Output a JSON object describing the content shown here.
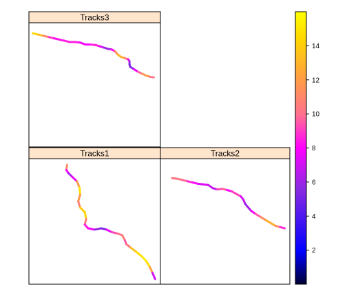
{
  "chart_data": {
    "type": "line",
    "description_of_encoding": "",
    "panels": [
      {
        "name": "Tracks3",
        "xlim": [
          0,
          1
        ],
        "ylim": [
          0,
          1
        ],
        "points": [
          [
            0.03,
            0.915,
            14.5
          ],
          [
            0.07,
            0.905,
            14.2
          ],
          [
            0.11,
            0.895,
            12.5
          ],
          [
            0.15,
            0.885,
            9.5
          ],
          [
            0.19,
            0.875,
            8.5
          ],
          [
            0.23,
            0.865,
            8.0
          ],
          [
            0.27,
            0.855,
            8.8
          ],
          [
            0.31,
            0.845,
            8.2
          ],
          [
            0.35,
            0.845,
            9.0
          ],
          [
            0.39,
            0.84,
            8.0
          ],
          [
            0.43,
            0.825,
            7.5
          ],
          [
            0.47,
            0.825,
            8.2
          ],
          [
            0.51,
            0.82,
            9.0
          ],
          [
            0.54,
            0.81,
            8.0
          ],
          [
            0.57,
            0.8,
            6.5
          ],
          [
            0.6,
            0.79,
            5.2
          ],
          [
            0.63,
            0.785,
            7.0
          ],
          [
            0.655,
            0.77,
            9.5
          ],
          [
            0.675,
            0.745,
            12.5
          ],
          [
            0.7,
            0.725,
            13.5
          ],
          [
            0.73,
            0.715,
            12.0
          ],
          [
            0.755,
            0.705,
            9.0
          ],
          [
            0.765,
            0.69,
            6.5
          ],
          [
            0.765,
            0.665,
            5.5
          ],
          [
            0.77,
            0.645,
            4.5
          ],
          [
            0.8,
            0.625,
            6.5
          ],
          [
            0.83,
            0.605,
            9.0
          ],
          [
            0.86,
            0.59,
            10.5
          ],
          [
            0.89,
            0.575,
            12.5
          ],
          [
            0.92,
            0.565,
            11.5
          ],
          [
            0.95,
            0.56,
            9.0
          ]
        ]
      },
      {
        "name": "Tracks1",
        "xlim": [
          0,
          1
        ],
        "ylim": [
          0,
          1
        ],
        "points": [
          [
            0.29,
            0.95,
            14.0
          ],
          [
            0.285,
            0.91,
            8.5
          ],
          [
            0.3,
            0.885,
            7.0
          ],
          [
            0.33,
            0.855,
            6.0
          ],
          [
            0.365,
            0.82,
            9.0
          ],
          [
            0.385,
            0.77,
            14.5
          ],
          [
            0.39,
            0.715,
            15.2
          ],
          [
            0.375,
            0.66,
            8.5
          ],
          [
            0.39,
            0.61,
            13.0
          ],
          [
            0.425,
            0.575,
            15.0
          ],
          [
            0.435,
            0.52,
            13.5
          ],
          [
            0.425,
            0.475,
            8.0
          ],
          [
            0.45,
            0.445,
            9.0
          ],
          [
            0.5,
            0.435,
            7.0
          ],
          [
            0.55,
            0.445,
            4.5
          ],
          [
            0.59,
            0.435,
            6.0
          ],
          [
            0.63,
            0.415,
            9.0
          ],
          [
            0.67,
            0.405,
            9.5
          ],
          [
            0.71,
            0.39,
            10.5
          ],
          [
            0.73,
            0.35,
            11.0
          ],
          [
            0.74,
            0.32,
            8.0
          ],
          [
            0.775,
            0.29,
            12.5
          ],
          [
            0.82,
            0.255,
            14.5
          ],
          [
            0.86,
            0.22,
            15.0
          ],
          [
            0.895,
            0.18,
            15.3
          ],
          [
            0.92,
            0.135,
            14.0
          ],
          [
            0.94,
            0.09,
            10.0
          ],
          [
            0.96,
            0.04,
            4.0
          ]
        ]
      },
      {
        "name": "Tracks2",
        "xlim": [
          0,
          1
        ],
        "ylim": [
          0,
          1
        ],
        "points": [
          [
            0.09,
            0.845,
            10.5
          ],
          [
            0.13,
            0.84,
            10.0
          ],
          [
            0.17,
            0.83,
            10.5
          ],
          [
            0.21,
            0.82,
            9.0
          ],
          [
            0.25,
            0.81,
            8.5
          ],
          [
            0.29,
            0.8,
            7.8
          ],
          [
            0.33,
            0.795,
            6.8
          ],
          [
            0.37,
            0.79,
            8.0
          ],
          [
            0.405,
            0.765,
            5.5
          ],
          [
            0.44,
            0.755,
            8.0
          ],
          [
            0.48,
            0.76,
            10.5
          ],
          [
            0.515,
            0.75,
            9.0
          ],
          [
            0.55,
            0.74,
            7.0
          ],
          [
            0.585,
            0.72,
            11.0
          ],
          [
            0.62,
            0.7,
            7.5
          ],
          [
            0.64,
            0.675,
            7.0
          ],
          [
            0.655,
            0.64,
            6.5
          ],
          [
            0.675,
            0.615,
            5.5
          ],
          [
            0.7,
            0.585,
            7.0
          ],
          [
            0.735,
            0.56,
            8.5
          ],
          [
            0.775,
            0.535,
            10.5
          ],
          [
            0.815,
            0.51,
            12.0
          ],
          [
            0.855,
            0.485,
            13.5
          ],
          [
            0.89,
            0.465,
            12.0
          ],
          [
            0.925,
            0.455,
            10.0
          ],
          [
            0.96,
            0.445,
            7.5
          ]
        ]
      }
    ],
    "colorkey": {
      "range": [
        0,
        16
      ],
      "ticks": [
        2,
        4,
        6,
        8,
        10,
        12,
        14
      ],
      "tick_labels": [
        "2",
        "4",
        "6",
        "8",
        "10",
        "12",
        "14"
      ],
      "stops": [
        "#000033",
        "#0000ff",
        "#8a2be2",
        "#ff00ff",
        "#ff6f91",
        "#ffa040",
        "#ffd700",
        "#ffff00"
      ]
    },
    "grid": false,
    "legend_placement": "right"
  }
}
